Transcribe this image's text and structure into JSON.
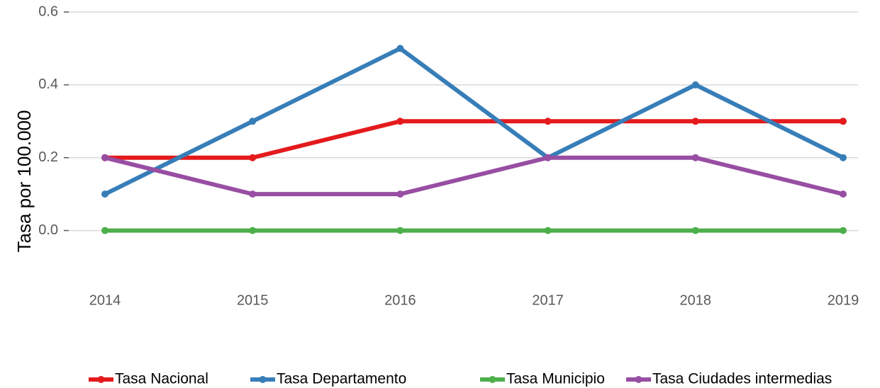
{
  "chart_data": {
    "type": "line",
    "y_label": "Tasa por 100.000",
    "categories": [
      "2014",
      "2015",
      "2016",
      "2017",
      "2018",
      "2019"
    ],
    "series": [
      {
        "name": "Tasa Nacional",
        "color": "#e41a1c",
        "values": [
          0.2,
          0.2,
          0.3,
          0.3,
          0.3,
          0.3
        ]
      },
      {
        "name": "Tasa Departamento",
        "color": "#377eb8",
        "values": [
          0.1,
          0.3,
          0.5,
          0.2,
          0.4,
          0.2
        ]
      },
      {
        "name": "Tasa Municipio",
        "color": "#4daf4a",
        "values": [
          0,
          0,
          0,
          0,
          0,
          0
        ]
      },
      {
        "name": "Tasa Ciudades intermedias",
        "color": "#984ea3",
        "values": [
          0.2,
          0.1,
          0.1,
          0.2,
          0.2,
          0.1
        ]
      }
    ],
    "ylim": [
      -0.1,
      0.6
    ],
    "yticks": [
      {
        "value": 0,
        "label": "0.0"
      },
      0.2,
      0.4,
      0.6
    ],
    "grid": true,
    "legend": "bottom"
  }
}
